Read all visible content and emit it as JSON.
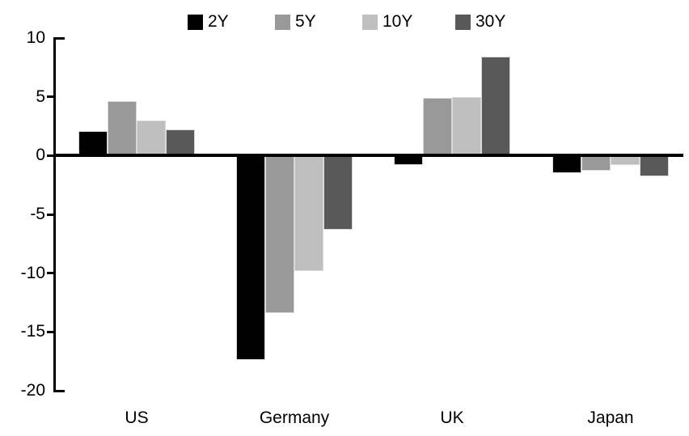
{
  "chart_data": {
    "type": "bar",
    "categories": [
      "US",
      "Germany",
      "UK",
      "Japan"
    ],
    "series": [
      {
        "name": "2Y",
        "color": "#000000",
        "values": [
          2.1,
          -17.4,
          -0.8,
          -1.5
        ]
      },
      {
        "name": "5Y",
        "color": "#999999",
        "values": [
          4.6,
          -13.4,
          4.9,
          -1.3
        ]
      },
      {
        "name": "10Y",
        "color": "#bfbfbf",
        "values": [
          3.0,
          -9.8,
          5.0,
          -0.8
        ]
      },
      {
        "name": "30Y",
        "color": "#595959",
        "values": [
          2.2,
          -6.3,
          8.4,
          -1.8
        ]
      }
    ],
    "title": "",
    "xlabel": "",
    "ylabel": "",
    "ylim": [
      -20,
      10
    ],
    "ytick_step": 5,
    "ytick_labels": [
      "10",
      "5",
      "0",
      "-5",
      "-10",
      "-15",
      "-20"
    ],
    "grid": "off",
    "legend_position": "top",
    "axis_color": "#000000"
  }
}
